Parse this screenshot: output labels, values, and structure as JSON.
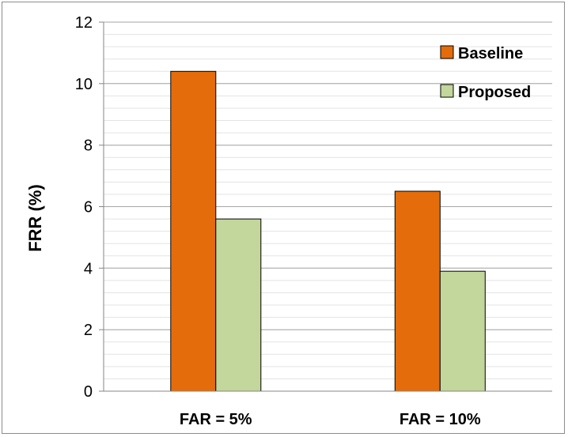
{
  "chart_data": {
    "type": "bar",
    "title": "",
    "xlabel": "",
    "ylabel": "FRR (%)",
    "categories": [
      "FAR = 5%",
      "FAR = 10%"
    ],
    "series": [
      {
        "name": "Baseline",
        "values": [
          10.4,
          6.5
        ],
        "color": "#e46c0a"
      },
      {
        "name": "Proposed",
        "values": [
          5.6,
          3.9
        ],
        "color": "#c3d69b"
      }
    ],
    "ylim": [
      0,
      12
    ],
    "yticks": [
      0,
      2,
      4,
      6,
      8,
      10,
      12
    ],
    "major_gridlines": true,
    "minor_gridlines": true,
    "legend_position": "top-right"
  }
}
